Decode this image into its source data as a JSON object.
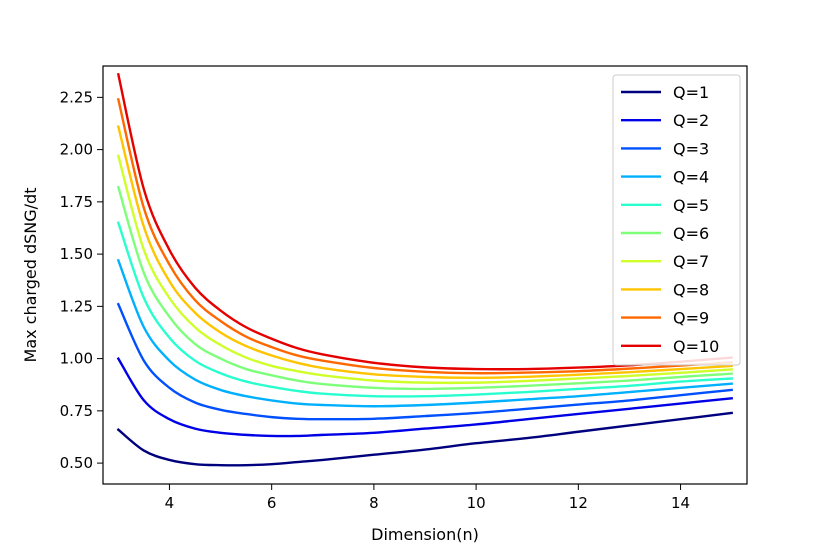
{
  "chart_data": {
    "type": "line",
    "title": "",
    "xlabel": "Dimension(n)",
    "ylabel": "Max charged dSNG/dt",
    "xlim": [
      2.7,
      15.3
    ],
    "ylim": [
      0.4,
      2.4
    ],
    "xticks": [
      4,
      6,
      8,
      10,
      12,
      14
    ],
    "yticks": [
      0.5,
      0.75,
      1.0,
      1.25,
      1.5,
      1.75,
      2.0,
      2.25
    ],
    "xtick_labels": [
      "4",
      "6",
      "8",
      "10",
      "12",
      "14"
    ],
    "ytick_labels": [
      "0.50",
      "0.75",
      "1.00",
      "1.25",
      "1.50",
      "1.75",
      "2.00",
      "2.25"
    ],
    "legend_position": "top-right",
    "grid": false,
    "x": [
      3,
      3.5,
      4,
      4.5,
      5,
      5.5,
      6,
      6.5,
      7,
      8,
      9,
      10,
      11,
      12,
      13,
      14,
      15
    ],
    "series": [
      {
        "name": "Q=1",
        "color": "#00007f",
        "values": [
          0.66,
          0.56,
          0.515,
          0.495,
          0.49,
          0.49,
          0.495,
          0.505,
          0.515,
          0.54,
          0.565,
          0.595,
          0.62,
          0.65,
          0.68,
          0.71,
          0.74
        ]
      },
      {
        "name": "Q=2",
        "color": "#0000e6",
        "values": [
          1.0,
          0.8,
          0.71,
          0.665,
          0.645,
          0.635,
          0.63,
          0.63,
          0.635,
          0.645,
          0.665,
          0.685,
          0.71,
          0.735,
          0.76,
          0.785,
          0.81
        ]
      },
      {
        "name": "Q=3",
        "color": "#0050ff",
        "values": [
          1.26,
          0.99,
          0.86,
          0.79,
          0.755,
          0.735,
          0.72,
          0.712,
          0.71,
          0.712,
          0.725,
          0.74,
          0.76,
          0.78,
          0.8,
          0.825,
          0.85
        ]
      },
      {
        "name": "Q=4",
        "color": "#00b0ff",
        "values": [
          1.47,
          1.15,
          0.99,
          0.9,
          0.85,
          0.82,
          0.8,
          0.785,
          0.778,
          0.772,
          0.778,
          0.79,
          0.805,
          0.82,
          0.84,
          0.86,
          0.88
        ]
      },
      {
        "name": "Q=5",
        "color": "#29ffce",
        "values": [
          1.65,
          1.29,
          1.1,
          0.99,
          0.93,
          0.89,
          0.865,
          0.845,
          0.832,
          0.82,
          0.82,
          0.828,
          0.84,
          0.855,
          0.87,
          0.89,
          0.905
        ]
      },
      {
        "name": "Q=6",
        "color": "#7dff7a",
        "values": [
          1.82,
          1.41,
          1.2,
          1.07,
          1.0,
          0.95,
          0.92,
          0.895,
          0.878,
          0.86,
          0.855,
          0.86,
          0.87,
          0.882,
          0.895,
          0.912,
          0.928
        ]
      },
      {
        "name": "Q=7",
        "color": "#ceff29",
        "values": [
          1.97,
          1.52,
          1.29,
          1.15,
          1.065,
          1.005,
          0.965,
          0.94,
          0.92,
          0.895,
          0.885,
          0.885,
          0.893,
          0.905,
          0.917,
          0.932,
          0.948
        ]
      },
      {
        "name": "Q=8",
        "color": "#ffc400",
        "values": [
          2.11,
          1.63,
          1.37,
          1.22,
          1.125,
          1.06,
          1.015,
          0.98,
          0.955,
          0.925,
          0.912,
          0.908,
          0.913,
          0.923,
          0.935,
          0.95,
          0.965
        ]
      },
      {
        "name": "Q=9",
        "color": "#ff6800",
        "values": [
          2.24,
          1.72,
          1.45,
          1.28,
          1.18,
          1.105,
          1.055,
          1.015,
          0.99,
          0.955,
          0.937,
          0.93,
          0.933,
          0.94,
          0.952,
          0.967,
          0.982
        ]
      },
      {
        "name": "Q=10",
        "color": "#e50000",
        "values": [
          2.36,
          1.81,
          1.52,
          1.34,
          1.23,
          1.15,
          1.095,
          1.05,
          1.02,
          0.98,
          0.958,
          0.95,
          0.95,
          0.957,
          0.968,
          0.985,
          1.005
        ]
      }
    ]
  }
}
